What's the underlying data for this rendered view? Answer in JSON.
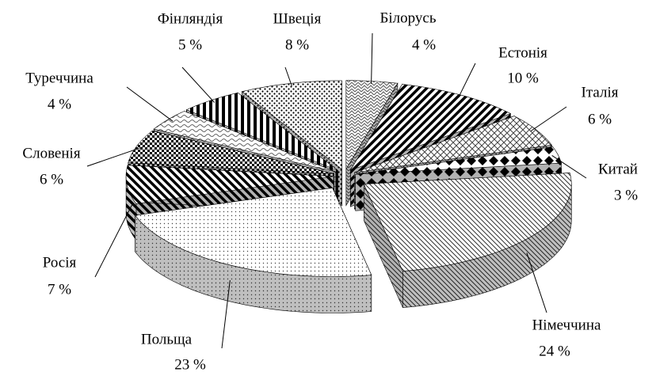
{
  "chart_data": {
    "type": "pie",
    "categories": [
      "Білорусь",
      "Естонія",
      "Італія",
      "Китай",
      "Німеччина",
      "Польща",
      "Росія",
      "Словенія",
      "Туреччина",
      "Фінляндія",
      "Швеція"
    ],
    "values": [
      4,
      10,
      6,
      3,
      24,
      23,
      7,
      6,
      4,
      5,
      8
    ],
    "value_labels": [
      "4 %",
      "10 %",
      "6 %",
      "3 %",
      "24 %",
      "23 %",
      "7 %",
      "6 %",
      "4 %",
      "5 %",
      "8 %"
    ]
  }
}
